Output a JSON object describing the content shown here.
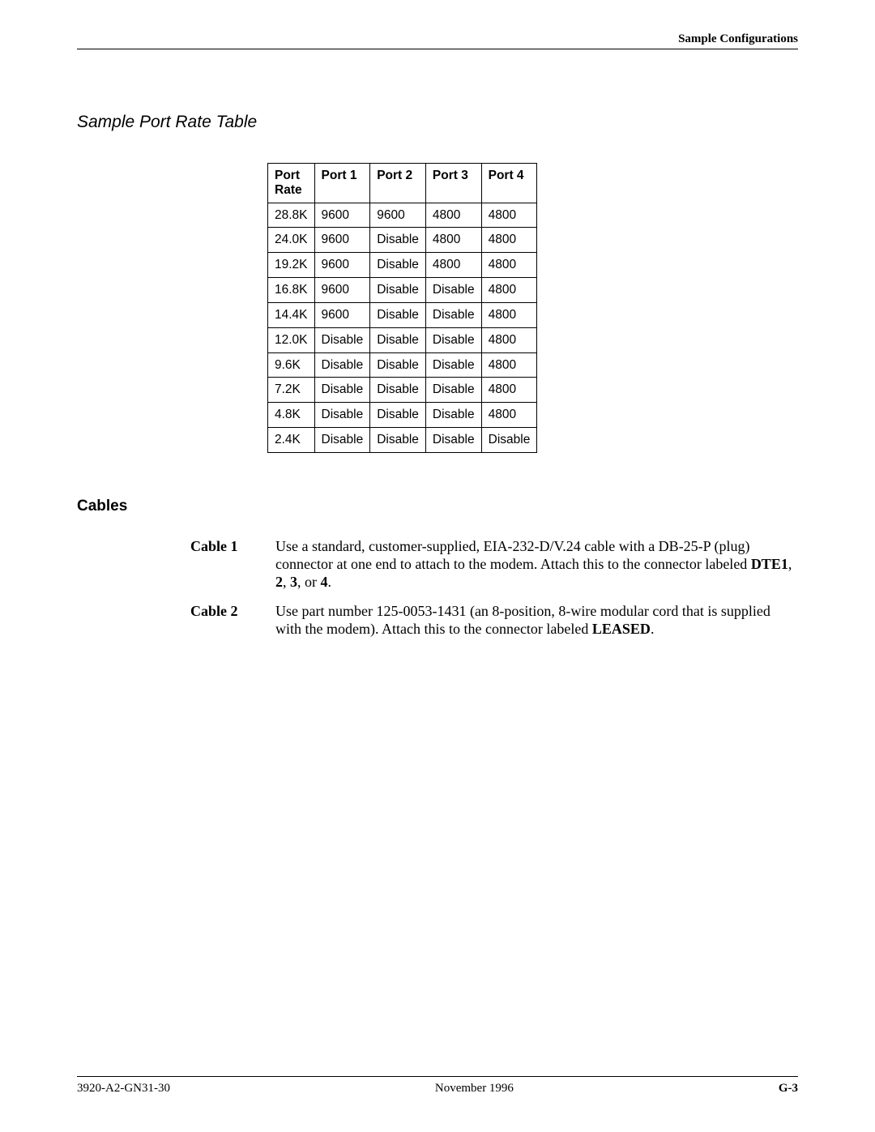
{
  "header": {
    "running_head": "Sample Configurations"
  },
  "section": {
    "title": "Sample Port Rate Table"
  },
  "table": {
    "columns": [
      "Port Rate",
      "Port 1",
      "Port 2",
      "Port 3",
      "Port 4"
    ],
    "col0_header_line1": "Port",
    "col0_header_line2": "Rate",
    "rows": [
      [
        "28.8K",
        "9600",
        "9600",
        "4800",
        "4800"
      ],
      [
        "24.0K",
        "9600",
        "Disable",
        "4800",
        "4800"
      ],
      [
        "19.2K",
        "9600",
        "Disable",
        "4800",
        "4800"
      ],
      [
        "16.8K",
        "9600",
        "Disable",
        "Disable",
        "4800"
      ],
      [
        "14.4K",
        "9600",
        "Disable",
        "Disable",
        "4800"
      ],
      [
        "12.0K",
        "Disable",
        "Disable",
        "Disable",
        "4800"
      ],
      [
        "9.6K",
        "Disable",
        "Disable",
        "Disable",
        "4800"
      ],
      [
        "7.2K",
        "Disable",
        "Disable",
        "Disable",
        "4800"
      ],
      [
        "4.8K",
        "Disable",
        "Disable",
        "Disable",
        "4800"
      ],
      [
        "2.4K",
        "Disable",
        "Disable",
        "Disable",
        "Disable"
      ]
    ],
    "right_align_rows_col0": [
      6,
      7,
      8,
      9
    ]
  },
  "cables": {
    "heading": "Cables",
    "items": [
      {
        "label": "Cable 1",
        "pre": "Use a standard, customer-supplied, EIA-232-D/V.24 cable with a DB-25-P (plug) connector at one end to attach to the modem. Attach this to the connector labeled ",
        "bold": "DTE1",
        "mid": ", ",
        "bold2": "2",
        "mid2": ", ",
        "bold3": "3",
        "mid3": ", or ",
        "bold4": "4",
        "post": "."
      },
      {
        "label": "Cable 2",
        "pre": "Use part number 125-0053-1431 (an 8-position, 8-wire modular cord that is supplied with the modem). Attach this to the connector labeled ",
        "bold": "LEASED",
        "mid": "",
        "bold2": "",
        "mid2": "",
        "bold3": "",
        "mid3": "",
        "bold4": "",
        "post": "."
      }
    ]
  },
  "footer": {
    "left": "3920-A2-GN31-30",
    "center": "November 1996",
    "right": "G-3"
  }
}
